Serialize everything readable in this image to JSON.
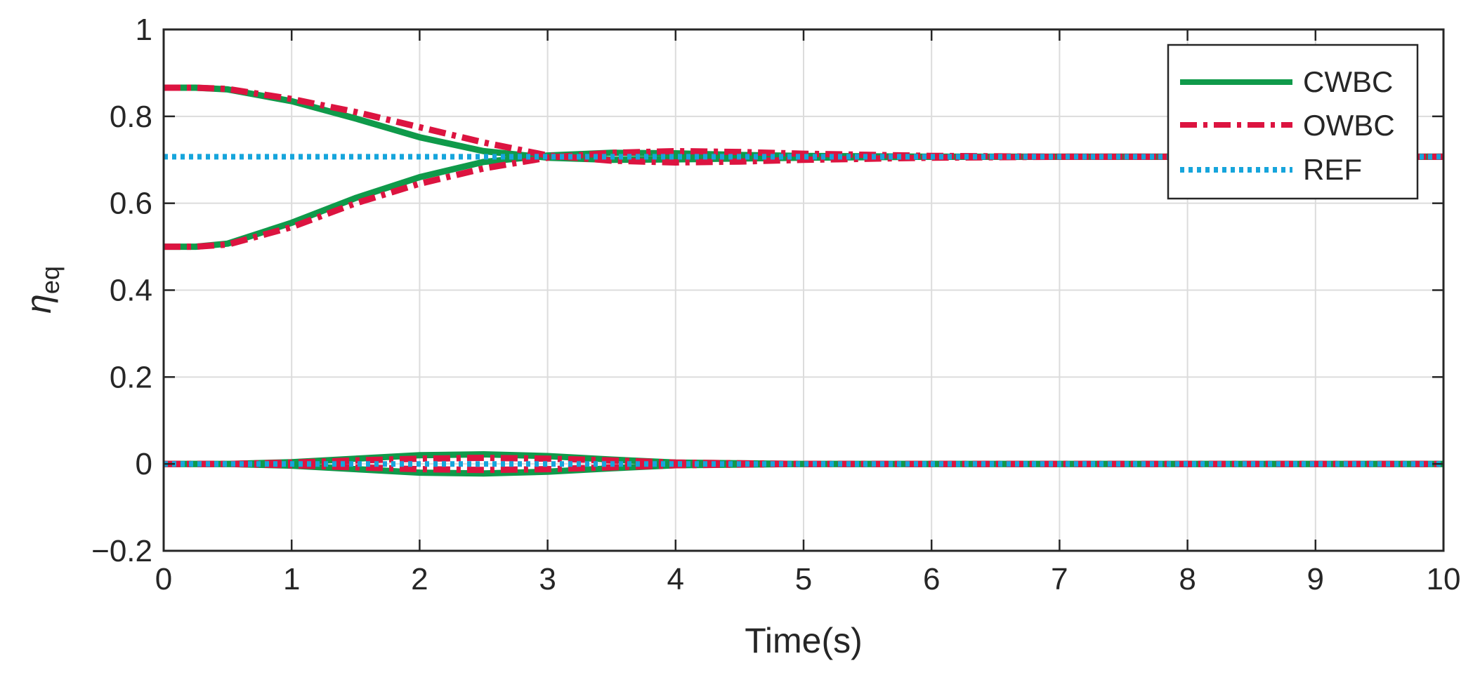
{
  "chart_data": {
    "type": "line",
    "xlabel": "Time(s)",
    "ylabel": {
      "base": "η",
      "sub": "eq"
    },
    "xlim": [
      0,
      10
    ],
    "ylim": [
      -0.2,
      1
    ],
    "xticks": [
      0,
      1,
      2,
      3,
      4,
      5,
      6,
      7,
      8,
      9,
      10
    ],
    "yticks": [
      -0.2,
      0,
      0.2,
      0.4,
      0.6,
      0.8,
      1
    ],
    "xtick_labels": [
      "0",
      "1",
      "2",
      "3",
      "4",
      "5",
      "6",
      "7",
      "8",
      "9",
      "10"
    ],
    "ytick_labels": [
      "−0.2",
      "0",
      "0.2",
      "0.4",
      "0.6",
      "0.8",
      "1"
    ],
    "grid": true,
    "legend_position": "top-right",
    "legend": [
      "CWBC",
      "OWBC",
      "REF"
    ],
    "colors": {
      "CWBC": "#0f9a4a",
      "OWBC": "#dc1440",
      "REF": "#16a5dc"
    },
    "series": [
      {
        "name": "CWBC",
        "style": "solid",
        "x": [
          0,
          0.25,
          0.5,
          1,
          1.5,
          2,
          2.5,
          3,
          3.5,
          4,
          4.5,
          5,
          6,
          7,
          8,
          10
        ],
        "values": [
          0.866,
          0.866,
          0.862,
          0.835,
          0.795,
          0.752,
          0.72,
          0.705,
          0.7,
          0.701,
          0.703,
          0.705,
          0.707,
          0.707,
          0.707,
          0.707
        ]
      },
      {
        "name": "CWBC",
        "style": "solid",
        "x": [
          0,
          0.25,
          0.5,
          1,
          1.5,
          2,
          2.5,
          3,
          3.5,
          4,
          4.5,
          5,
          6,
          7,
          8,
          10
        ],
        "values": [
          0.5,
          0.5,
          0.507,
          0.555,
          0.612,
          0.66,
          0.695,
          0.71,
          0.716,
          0.715,
          0.711,
          0.709,
          0.707,
          0.707,
          0.707,
          0.707
        ]
      },
      {
        "name": "CWBC",
        "style": "solid",
        "x": [
          0,
          0.5,
          1,
          1.5,
          2,
          2.5,
          3,
          3.5,
          4,
          5,
          6,
          10
        ],
        "values": [
          0,
          0,
          0.004,
          0.012,
          0.02,
          0.022,
          0.018,
          0.01,
          0.003,
          0,
          0,
          0
        ]
      },
      {
        "name": "CWBC",
        "style": "solid",
        "x": [
          0,
          0.5,
          1,
          1.5,
          2,
          2.5,
          3,
          3.5,
          4,
          5,
          6,
          10
        ],
        "values": [
          0,
          0,
          -0.004,
          -0.012,
          -0.02,
          -0.022,
          -0.018,
          -0.01,
          -0.003,
          0,
          0,
          0
        ]
      },
      {
        "name": "OWBC",
        "style": "dashdot",
        "x": [
          0,
          0.25,
          0.5,
          1,
          1.5,
          2,
          2.5,
          3,
          3.5,
          4,
          4.5,
          5,
          6,
          7,
          8,
          10
        ],
        "values": [
          0.866,
          0.866,
          0.863,
          0.84,
          0.81,
          0.775,
          0.74,
          0.71,
          0.698,
          0.694,
          0.696,
          0.7,
          0.705,
          0.707,
          0.707,
          0.707
        ]
      },
      {
        "name": "OWBC",
        "style": "dashdot",
        "x": [
          0,
          0.25,
          0.5,
          1,
          1.5,
          2,
          2.5,
          3,
          3.5,
          4,
          4.5,
          5,
          6,
          7,
          8,
          10
        ],
        "values": [
          0.5,
          0.5,
          0.505,
          0.545,
          0.6,
          0.645,
          0.68,
          0.705,
          0.716,
          0.72,
          0.718,
          0.714,
          0.709,
          0.707,
          0.707,
          0.707
        ]
      },
      {
        "name": "OWBC",
        "style": "dashdot",
        "x": [
          0,
          0.5,
          1,
          1.5,
          2,
          2.5,
          3,
          3.5,
          4,
          5,
          6,
          10
        ],
        "values": [
          0,
          0,
          0.003,
          0.008,
          0.012,
          0.014,
          0.012,
          0.008,
          0.003,
          0,
          0,
          0
        ]
      },
      {
        "name": "OWBC",
        "style": "dashdot",
        "x": [
          0,
          0.5,
          1,
          1.5,
          2,
          2.5,
          3,
          3.5,
          4,
          5,
          6,
          10
        ],
        "values": [
          0,
          0,
          -0.003,
          -0.008,
          -0.012,
          -0.014,
          -0.012,
          -0.008,
          -0.003,
          0,
          0,
          0
        ]
      },
      {
        "name": "REF",
        "style": "dotted",
        "x": [
          0,
          10
        ],
        "values": [
          0.707,
          0.707
        ]
      },
      {
        "name": "REF",
        "style": "dotted",
        "x": [
          0,
          10
        ],
        "values": [
          0,
          0
        ]
      }
    ]
  }
}
